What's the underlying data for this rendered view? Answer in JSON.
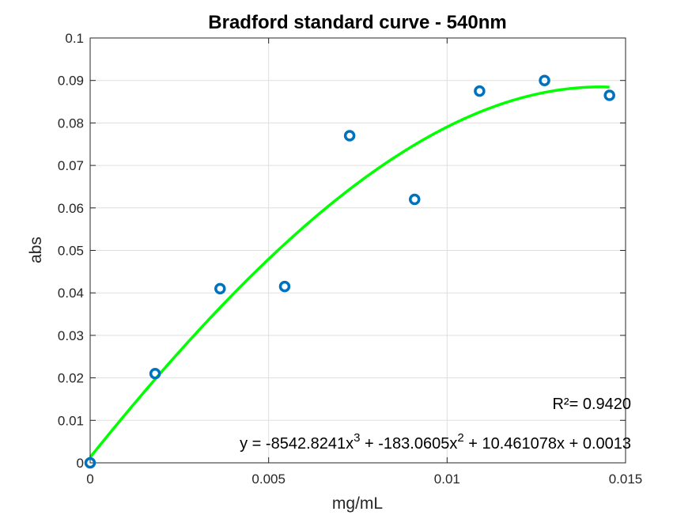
{
  "chart_data": {
    "type": "scatter",
    "title": "Bradford standard curve - 540nm",
    "xlabel": "mg/mL",
    "ylabel": "abs",
    "xlim": [
      0,
      0.015
    ],
    "ylim": [
      0,
      0.1
    ],
    "xticks": [
      0,
      0.005,
      0.01,
      0.015
    ],
    "xtick_labels": [
      "0",
      "0.005",
      "0.01",
      "0.015"
    ],
    "yticks": [
      0,
      0.01,
      0.02,
      0.03,
      0.04,
      0.05,
      0.06,
      0.07,
      0.08,
      0.09,
      0.1
    ],
    "ytick_labels": [
      "0",
      "0.01",
      "0.02",
      "0.03",
      "0.04",
      "0.05",
      "0.06",
      "0.07",
      "0.08",
      "0.09",
      "0.1"
    ],
    "grid": true,
    "series": [
      {
        "kind": "scatter",
        "marker": "circle-open",
        "color": "#0072BD",
        "x": [
          0,
          0.00182,
          0.00364,
          0.00545,
          0.00727,
          0.00909,
          0.01091,
          0.01273,
          0.01455
        ],
        "y": [
          0,
          0.021,
          0.041,
          0.0415,
          0.077,
          0.062,
          0.0875,
          0.09,
          0.0865
        ]
      },
      {
        "kind": "fit-line",
        "color": "#00FF00",
        "polynomial": [
          -8542.8241,
          -183.0605,
          10.461078,
          0.0013
        ],
        "x_range": [
          0,
          0.01455
        ]
      }
    ],
    "annotations": {
      "r_squared": "R²= 0.9420",
      "equation_part1": "y = -8542.8241x",
      "equation_exp1": "3",
      "equation_part2": " + -183.0605x",
      "equation_exp2": "2",
      "equation_part3": " + 10.461078x + 0.0013"
    }
  }
}
